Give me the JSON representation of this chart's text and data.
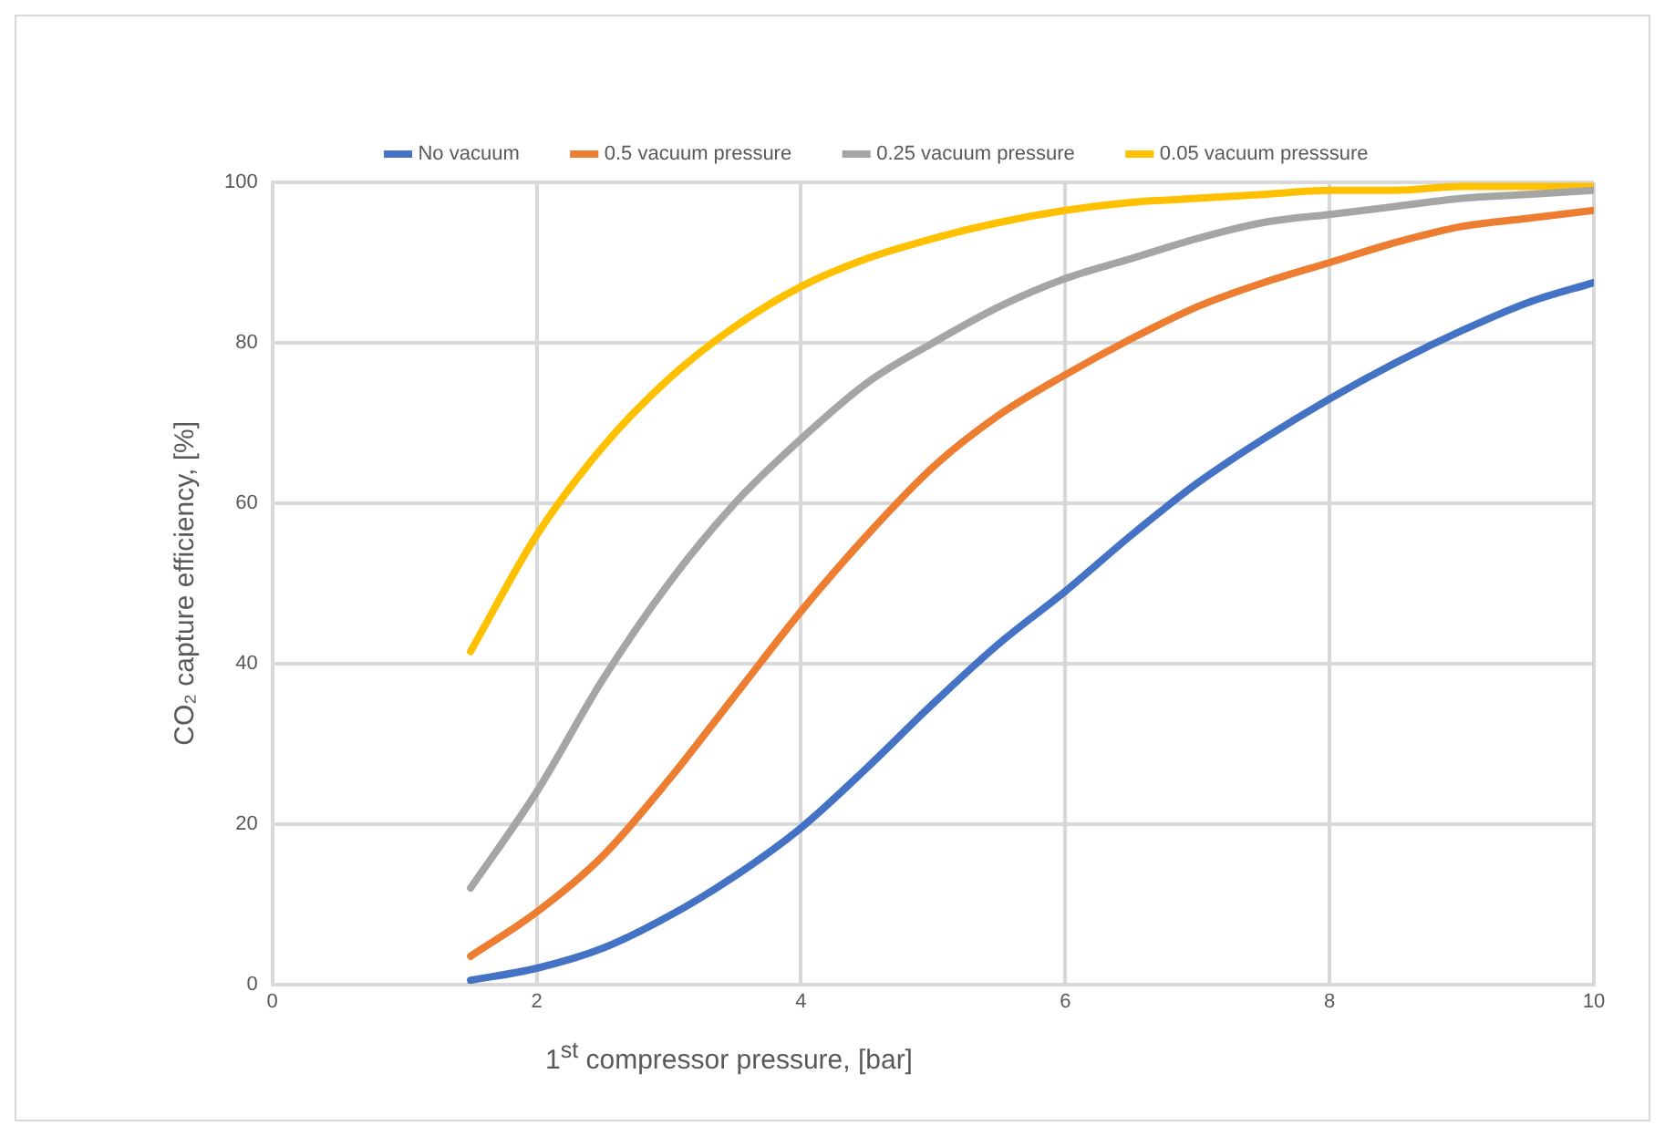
{
  "chart_data": {
    "type": "line",
    "xlabel": "1$^{st}$ compressor pressure, [bar]",
    "ylabel": "CO₂ capture efficiency, [%]",
    "x": [
      1.5,
      2,
      2.5,
      3,
      3.5,
      4,
      4.5,
      5,
      5.5,
      6,
      6.5,
      7,
      7.5,
      8,
      8.5,
      9,
      9.5,
      10
    ],
    "series": [
      {
        "name": "No vacuum",
        "color": "#4472c4",
        "values": [
          0.5,
          2,
          4.5,
          8.5,
          13.5,
          19.5,
          27,
          35,
          42.5,
          49,
          56,
          62.5,
          68,
          73,
          77.5,
          81.5,
          85,
          87.5
        ]
      },
      {
        "name": "0.5 vacuum pressure",
        "color": "#ed7d31",
        "values": [
          3.5,
          9,
          16,
          25.5,
          36,
          46.5,
          56,
          64.5,
          71,
          76,
          80.5,
          84.5,
          87.5,
          90,
          92.5,
          94.5,
          95.5,
          96.5
        ]
      },
      {
        "name": "0.25 vacuum pressure",
        "color": "#a5a5a5",
        "values": [
          12,
          24,
          38,
          50,
          60,
          68,
          75,
          80,
          84.5,
          88,
          90.5,
          93,
          95,
          96,
          97,
          98,
          98.5,
          99
        ]
      },
      {
        "name": "0.05 vacuum presssure",
        "color": "#ffc000",
        "values": [
          41.5,
          56,
          67,
          75.5,
          82,
          87,
          90.5,
          93,
          95,
          96.5,
          97.5,
          98,
          98.5,
          99,
          99,
          99.5,
          99.5,
          99.5
        ]
      }
    ],
    "xlim": [
      0,
      10
    ],
    "xticks": [
      0,
      2,
      4,
      6,
      8,
      10
    ],
    "ylim": [
      0,
      100
    ],
    "yticks": [
      0,
      20,
      40,
      60,
      80,
      100
    ],
    "grid": true,
    "legend": "top",
    "marker": "none",
    "line_style": "solid"
  }
}
